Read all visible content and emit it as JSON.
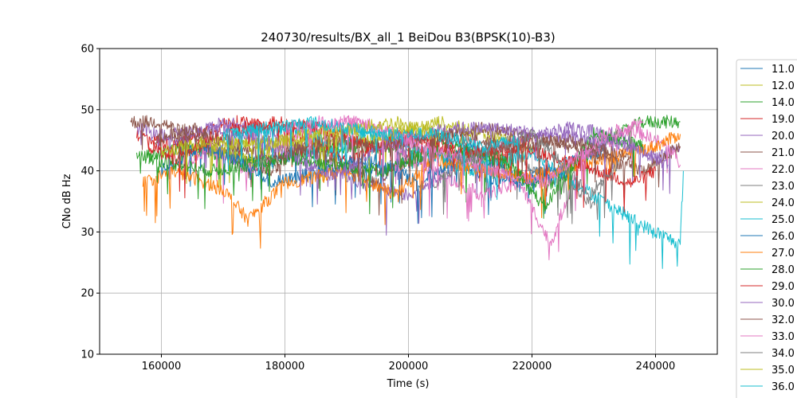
{
  "chart_data": {
    "type": "line",
    "title": "240730/results/BX_all_1 BeiDou B3(BPSK(10)-B3)",
    "xlabel": "Time (s)",
    "ylabel": "CNo dB Hz",
    "xlim": [
      150000,
      250000
    ],
    "ylim": [
      10,
      60
    ],
    "x_ticks": [
      160000,
      180000,
      200000,
      220000,
      240000
    ],
    "y_ticks": [
      10,
      20,
      30,
      40,
      50,
      60
    ],
    "grid": true,
    "legend_position": "right, outside plot area, partially clipped",
    "series": [
      {
        "name": "11.0",
        "color": "#1f77b4",
        "points": [
          [
            162000,
            44
          ],
          [
            172000,
            43
          ],
          [
            176000,
            41
          ],
          [
            185000,
            44
          ],
          [
            195000,
            40
          ],
          [
            205000,
            43
          ],
          [
            215000,
            38
          ],
          [
            225000,
            41
          ],
          [
            232000,
            44
          ]
        ]
      },
      {
        "name": "12.0",
        "color": "#bcbd22",
        "points": [
          [
            165000,
            43
          ],
          [
            175000,
            45
          ],
          [
            188000,
            44
          ],
          [
            198000,
            46
          ],
          [
            205000,
            48
          ],
          [
            212000,
            46
          ],
          [
            220000,
            44
          ]
        ]
      },
      {
        "name": "14.0",
        "color": "#2ca02c",
        "points": [
          [
            156000,
            42
          ],
          [
            165000,
            44
          ],
          [
            175000,
            41
          ],
          [
            190000,
            44
          ],
          [
            205000,
            43
          ],
          [
            215000,
            41
          ],
          [
            222000,
            37
          ],
          [
            230000,
            44
          ],
          [
            238000,
            48
          ],
          [
            244000,
            48
          ]
        ]
      },
      {
        "name": "19.0",
        "color": "#d62728",
        "points": [
          [
            156000,
            46
          ],
          [
            162000,
            44
          ],
          [
            168000,
            47
          ],
          [
            172000,
            48
          ],
          [
            178000,
            47
          ],
          [
            185000,
            45
          ],
          [
            190000,
            41
          ],
          [
            198000,
            46
          ],
          [
            206000,
            45
          ],
          [
            215000,
            42
          ],
          [
            220000,
            46
          ]
        ]
      },
      {
        "name": "20.0",
        "color": "#9467bd",
        "points": [
          [
            156000,
            47
          ],
          [
            160000,
            46
          ],
          [
            164000,
            45
          ],
          [
            170000,
            48
          ],
          [
            178000,
            46
          ],
          [
            186000,
            42
          ],
          [
            192000,
            38
          ],
          [
            200000,
            36
          ],
          [
            210000,
            42
          ],
          [
            218000,
            45
          ],
          [
            226000,
            47
          ],
          [
            234000,
            46
          ],
          [
            240000,
            42
          ],
          [
            244000,
            44
          ]
        ]
      },
      {
        "name": "21.0",
        "color": "#8c564b",
        "points": [
          [
            155000,
            48
          ],
          [
            160000,
            48
          ],
          [
            166000,
            45
          ],
          [
            172000,
            42
          ],
          [
            178000,
            40
          ],
          [
            182000,
            44
          ],
          [
            188000,
            42
          ],
          [
            195000,
            38
          ],
          [
            200000,
            42
          ],
          [
            206000,
            46
          ],
          [
            212000,
            47
          ],
          [
            218000,
            46
          ],
          [
            226000,
            44
          ],
          [
            232000,
            42
          ],
          [
            238000,
            40
          ],
          [
            244000,
            44
          ]
        ]
      },
      {
        "name": "22.0",
        "color": "#e377c2",
        "points": [
          [
            164000,
            41
          ],
          [
            168000,
            44
          ],
          [
            174000,
            40
          ],
          [
            182000,
            46
          ],
          [
            190000,
            48
          ],
          [
            196000,
            46
          ],
          [
            200000,
            42
          ],
          [
            204000,
            40
          ],
          [
            212000,
            36
          ],
          [
            218000,
            38
          ],
          [
            223000,
            28
          ],
          [
            228000,
            42
          ],
          [
            236000,
            47
          ],
          [
            242000,
            44
          ],
          [
            244000,
            41
          ]
        ]
      },
      {
        "name": "23.0",
        "color": "#7f7f7f",
        "points": [
          [
            204000,
            38
          ],
          [
            210000,
            42
          ],
          [
            216000,
            44
          ],
          [
            220000,
            40
          ],
          [
            226000,
            38
          ],
          [
            230000,
            34
          ],
          [
            232000,
            40
          ]
        ]
      },
      {
        "name": "24.0",
        "color": "#bcbd22",
        "points": [
          [
            168000,
            44
          ],
          [
            174000,
            42
          ],
          [
            180000,
            44
          ],
          [
            190000,
            46
          ],
          [
            196000,
            45
          ],
          [
            200000,
            47
          ],
          [
            206000,
            46
          ]
        ]
      },
      {
        "name": "25.0",
        "color": "#17becf",
        "points": [
          [
            170000,
            45
          ],
          [
            176000,
            47
          ],
          [
            184000,
            47
          ],
          [
            188000,
            43
          ],
          [
            194000,
            47
          ],
          [
            200000,
            44
          ],
          [
            210000,
            40
          ],
          [
            220000,
            43
          ],
          [
            230000,
            36
          ],
          [
            238000,
            31
          ],
          [
            244000,
            28
          ],
          [
            244500,
            40
          ]
        ]
      },
      {
        "name": "26.0",
        "color": "#1f77b4",
        "points": [
          [
            160000,
            40
          ],
          [
            166000,
            44
          ],
          [
            172000,
            42
          ],
          [
            178000,
            38
          ],
          [
            186000,
            40
          ],
          [
            194000,
            42
          ],
          [
            202000,
            38
          ],
          [
            210000,
            44
          ],
          [
            218000,
            38
          ],
          [
            226000,
            40
          ]
        ]
      },
      {
        "name": "27.0",
        "color": "#ff7f0e",
        "points": [
          [
            157000,
            38
          ],
          [
            162000,
            40
          ],
          [
            170000,
            37
          ],
          [
            174000,
            32
          ],
          [
            180000,
            38
          ],
          [
            190000,
            40
          ],
          [
            198000,
            36
          ],
          [
            204000,
            42
          ],
          [
            212000,
            40
          ],
          [
            220000,
            39
          ],
          [
            240000,
            44
          ],
          [
            244000,
            46
          ]
        ]
      },
      {
        "name": "28.0",
        "color": "#2ca02c",
        "points": [
          [
            158000,
            42
          ],
          [
            168000,
            40
          ],
          [
            180000,
            42
          ],
          [
            196000,
            40
          ],
          [
            206000,
            44
          ],
          [
            216000,
            42
          ],
          [
            222000,
            34
          ],
          [
            230000,
            46
          ],
          [
            238000,
            44
          ]
        ]
      },
      {
        "name": "29.0",
        "color": "#d62728",
        "points": [
          [
            158000,
            44
          ],
          [
            162000,
            42
          ],
          [
            170000,
            46
          ],
          [
            178000,
            48
          ],
          [
            186000,
            47
          ],
          [
            194000,
            44
          ],
          [
            200000,
            45
          ],
          [
            210000,
            43
          ],
          [
            218000,
            44
          ],
          [
            228000,
            41
          ],
          [
            236000,
            38
          ],
          [
            240000,
            40
          ]
        ]
      },
      {
        "name": "30.0",
        "color": "#9467bd",
        "points": [
          [
            162000,
            46
          ],
          [
            168000,
            47
          ],
          [
            174000,
            46
          ],
          [
            180000,
            43
          ],
          [
            188000,
            39
          ],
          [
            196000,
            44
          ],
          [
            206000,
            47
          ],
          [
            214000,
            47
          ],
          [
            222000,
            46
          ],
          [
            230000,
            45
          ],
          [
            236000,
            44
          ],
          [
            242000,
            41
          ]
        ]
      },
      {
        "name": "32.0",
        "color": "#8c564b",
        "points": [
          [
            159000,
            45
          ],
          [
            165000,
            47
          ],
          [
            172000,
            44
          ],
          [
            178000,
            42
          ],
          [
            186000,
            45
          ],
          [
            196000,
            44
          ],
          [
            206000,
            46
          ],
          [
            216000,
            44
          ],
          [
            226000,
            45
          ],
          [
            236000,
            42
          ]
        ]
      },
      {
        "name": "33.0",
        "color": "#e377c2",
        "points": [
          [
            180000,
            47
          ],
          [
            186000,
            48
          ],
          [
            192000,
            48
          ],
          [
            198000,
            46
          ],
          [
            202000,
            44
          ],
          [
            208000,
            42
          ],
          [
            214000,
            40
          ],
          [
            222000,
            38
          ],
          [
            232000,
            46
          ],
          [
            238000,
            48
          ]
        ]
      },
      {
        "name": "34.0",
        "color": "#7f7f7f",
        "points": [
          [
            208000,
            42
          ],
          [
            214000,
            44
          ],
          [
            220000,
            46
          ],
          [
            226000,
            40
          ],
          [
            229000,
            36
          ],
          [
            234000,
            41
          ]
        ]
      },
      {
        "name": "35.0",
        "color": "#bcbd22",
        "points": [
          [
            160000,
            43
          ],
          [
            168000,
            45
          ],
          [
            176000,
            44
          ],
          [
            184000,
            46
          ],
          [
            192000,
            47
          ],
          [
            198000,
            48
          ],
          [
            204000,
            46
          ]
        ]
      },
      {
        "name": "36.0",
        "color": "#17becf",
        "points": [
          [
            170000,
            46
          ],
          [
            178000,
            47
          ],
          [
            184000,
            48
          ],
          [
            190000,
            47
          ],
          [
            196000,
            46
          ],
          [
            204000,
            46
          ],
          [
            212000,
            44
          ],
          [
            218000,
            45
          ]
        ]
      }
    ]
  }
}
